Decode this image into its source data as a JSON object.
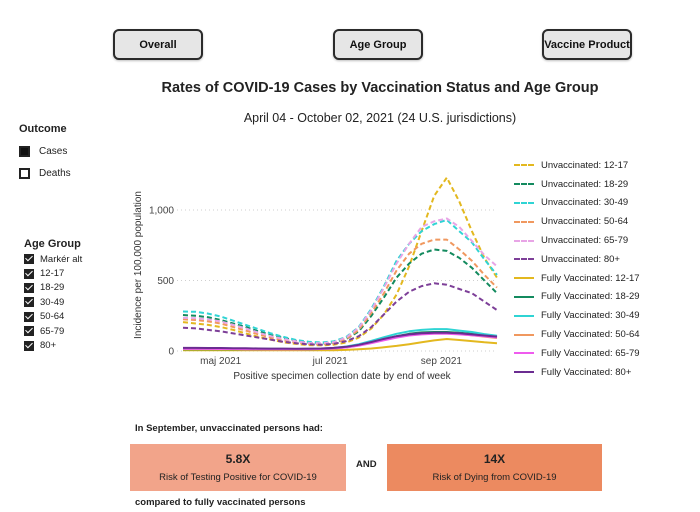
{
  "buttons": {
    "overall": "Overall",
    "age_group": "Age Group",
    "vaccine_product": "Vaccine Product"
  },
  "title": "Rates of COVID-19 Cases by Vaccination Status and Age Group",
  "subtitle": "April 04 - October 02, 2021 (24 U.S. jurisdictions)",
  "outcome": {
    "title": "Outcome",
    "options": [
      {
        "label": "Cases",
        "selected": true
      },
      {
        "label": "Deaths",
        "selected": false
      }
    ]
  },
  "age_group_filter": {
    "title": "Age Group",
    "items": [
      {
        "label": "Markér alt",
        "checked": true
      },
      {
        "label": "12-17",
        "checked": true
      },
      {
        "label": "18-29",
        "checked": true
      },
      {
        "label": "30-49",
        "checked": true
      },
      {
        "label": "50-64",
        "checked": true
      },
      {
        "label": "65-79",
        "checked": true
      },
      {
        "label": "80+",
        "checked": true
      }
    ]
  },
  "chart_data": {
    "type": "line",
    "xlabel": "Positive specimen collection date by end of week",
    "ylabel": "Incidence per 100,000 population",
    "x_tick_labels": [
      "maj 2021",
      "jul 2021",
      "sep 2021"
    ],
    "y_tick_labels": [
      "0",
      "500",
      "1,000"
    ],
    "ylim": [
      0,
      1300
    ],
    "grid": "horizontal dotted",
    "legend_position": "right",
    "x": [
      "2021-04-10",
      "2021-04-17",
      "2021-04-24",
      "2021-05-01",
      "2021-05-08",
      "2021-05-15",
      "2021-05-22",
      "2021-05-29",
      "2021-06-05",
      "2021-06-12",
      "2021-06-19",
      "2021-06-26",
      "2021-07-03",
      "2021-07-10",
      "2021-07-17",
      "2021-07-24",
      "2021-07-31",
      "2021-08-07",
      "2021-08-14",
      "2021-08-21",
      "2021-08-28",
      "2021-09-04",
      "2021-09-11",
      "2021-09-18",
      "2021-09-25",
      "2021-10-02"
    ],
    "series": [
      {
        "name": "Unvaccinated: 12-17",
        "color": "#e3b81f",
        "dashed": true,
        "values": [
          205,
          195,
          185,
          170,
          150,
          125,
          100,
          80,
          62,
          50,
          42,
          40,
          45,
          60,
          95,
          160,
          260,
          400,
          600,
          850,
          1100,
          1230,
          1060,
          850,
          660,
          520
        ]
      },
      {
        "name": "Unvaccinated: 18-29",
        "color": "#138a5e",
        "dashed": true,
        "values": [
          255,
          250,
          240,
          220,
          195,
          170,
          140,
          115,
          92,
          72,
          58,
          52,
          58,
          85,
          140,
          250,
          380,
          520,
          620,
          690,
          720,
          710,
          660,
          590,
          500,
          410
        ]
      },
      {
        "name": "Unvaccinated: 30-49",
        "color": "#2fd4d4",
        "dashed": true,
        "values": [
          280,
          278,
          265,
          245,
          215,
          185,
          155,
          125,
          100,
          78,
          65,
          60,
          68,
          100,
          170,
          300,
          460,
          640,
          760,
          850,
          900,
          930,
          850,
          770,
          650,
          540
        ]
      },
      {
        "name": "Unvaccinated: 50-64",
        "color": "#f0985f",
        "dashed": true,
        "values": [
          225,
          220,
          210,
          195,
          170,
          145,
          118,
          95,
          75,
          60,
          50,
          48,
          55,
          85,
          150,
          270,
          410,
          570,
          690,
          760,
          790,
          790,
          720,
          640,
          540,
          450
        ]
      },
      {
        "name": "Unvaccinated: 65-79",
        "color": "#e8a5e6",
        "dashed": true,
        "values": [
          235,
          232,
          225,
          210,
          185,
          160,
          130,
          105,
          85,
          68,
          57,
          55,
          62,
          95,
          165,
          290,
          450,
          620,
          760,
          880,
          920,
          940,
          880,
          780,
          680,
          600
        ]
      },
      {
        "name": "Unvaccinated: 80+",
        "color": "#7d3f98",
        "dashed": true,
        "values": [
          165,
          160,
          150,
          140,
          125,
          110,
          95,
          80,
          65,
          55,
          47,
          45,
          50,
          70,
          105,
          170,
          260,
          350,
          420,
          460,
          480,
          470,
          440,
          410,
          350,
          290
        ]
      },
      {
        "name": "Fully Vaccinated: 12-17",
        "color": "#e3b81f",
        "dashed": false,
        "values": [
          5,
          5,
          5,
          5,
          5,
          5,
          5,
          5,
          5,
          5,
          5,
          5,
          6,
          8,
          12,
          18,
          26,
          36,
          48,
          62,
          75,
          85,
          78,
          70,
          62,
          55
        ]
      },
      {
        "name": "Fully Vaccinated: 18-29",
        "color": "#138a5e",
        "dashed": false,
        "values": [
          12,
          12,
          12,
          12,
          12,
          12,
          12,
          12,
          12,
          12,
          13,
          14,
          18,
          26,
          40,
          60,
          82,
          105,
          122,
          132,
          135,
          135,
          130,
          122,
          112,
          100
        ]
      },
      {
        "name": "Fully Vaccinated: 30-49",
        "color": "#2fd4d4",
        "dashed": false,
        "values": [
          20,
          20,
          19,
          19,
          18,
          17,
          16,
          15,
          15,
          14,
          15,
          17,
          22,
          32,
          48,
          72,
          98,
          122,
          140,
          150,
          155,
          155,
          145,
          135,
          120,
          108
        ]
      },
      {
        "name": "Fully Vaccinated: 50-64",
        "color": "#f0985f",
        "dashed": false,
        "values": [
          16,
          16,
          16,
          15,
          15,
          14,
          14,
          13,
          13,
          13,
          14,
          15,
          19,
          27,
          40,
          60,
          82,
          102,
          116,
          124,
          128,
          126,
          120,
          112,
          102,
          92
        ]
      },
      {
        "name": "Fully Vaccinated: 65-79",
        "color": "#ef5bee",
        "dashed": false,
        "values": [
          15,
          15,
          15,
          14,
          14,
          13,
          13,
          12,
          12,
          12,
          13,
          14,
          18,
          25,
          38,
          55,
          76,
          95,
          110,
          118,
          122,
          122,
          118,
          112,
          104,
          96
        ]
      },
      {
        "name": "Fully Vaccinated: 80+",
        "color": "#6b2c91",
        "dashed": false,
        "values": [
          22,
          22,
          21,
          21,
          20,
          19,
          18,
          17,
          17,
          16,
          17,
          18,
          22,
          30,
          44,
          64,
          86,
          105,
          118,
          126,
          130,
          130,
          126,
          118,
          110,
          102
        ]
      }
    ]
  },
  "summary": {
    "intro": "In September, unvaccinated persons had:",
    "stat1_value": "5.8X",
    "stat1_label": "Risk of Testing Positive for COVID-19",
    "and": "AND",
    "stat2_value": "14X",
    "stat2_label": "Risk of Dying from COVID-19",
    "compared": "compared to fully vaccinated persons",
    "stat1_color": "#f2a48a",
    "stat2_color": "#ec8a60"
  }
}
